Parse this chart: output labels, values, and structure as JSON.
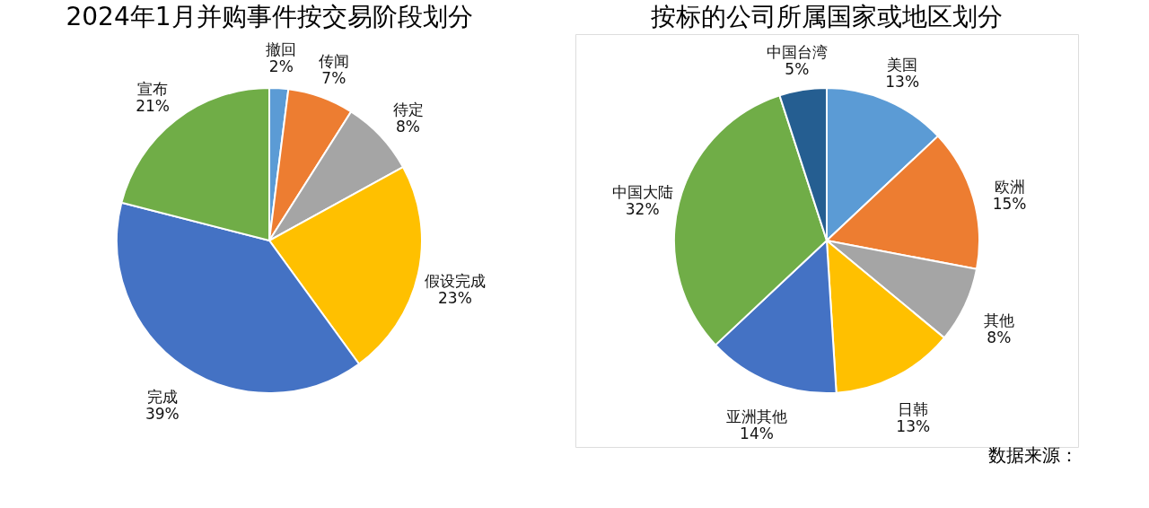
{
  "chart_data": [
    {
      "type": "pie",
      "title": "2024年1月并购事件按交易阶段划分",
      "categories": [
        "撤回",
        "传闻",
        "待定",
        "假设完成",
        "完成",
        "宣布"
      ],
      "values": [
        2,
        7,
        8,
        23,
        39,
        21
      ],
      "colors": [
        "#5b9bd5",
        "#ed7d31",
        "#a5a5a5",
        "#ffc000",
        "#4472c4",
        "#70ad47"
      ],
      "value_labels": [
        "2%",
        "7%",
        "8%",
        "23%",
        "39%",
        "21%"
      ],
      "legend": false
    },
    {
      "type": "pie",
      "title": "按标的公司所属国家或地区划分",
      "categories": [
        "美国",
        "欧洲",
        "其他",
        "日韩",
        "亚洲其他",
        "中国大陆",
        "中国台湾"
      ],
      "values": [
        13,
        15,
        8,
        13,
        14,
        32,
        5
      ],
      "colors": [
        "#5b9bd5",
        "#ed7d31",
        "#a5a5a5",
        "#ffc000",
        "#4472c4",
        "#70ad47",
        "#255e91"
      ],
      "value_labels": [
        "13%",
        "15%",
        "8%",
        "13%",
        "14%",
        "32%",
        "5%"
      ],
      "legend": false,
      "annotations": [
        "数据来源："
      ]
    }
  ]
}
